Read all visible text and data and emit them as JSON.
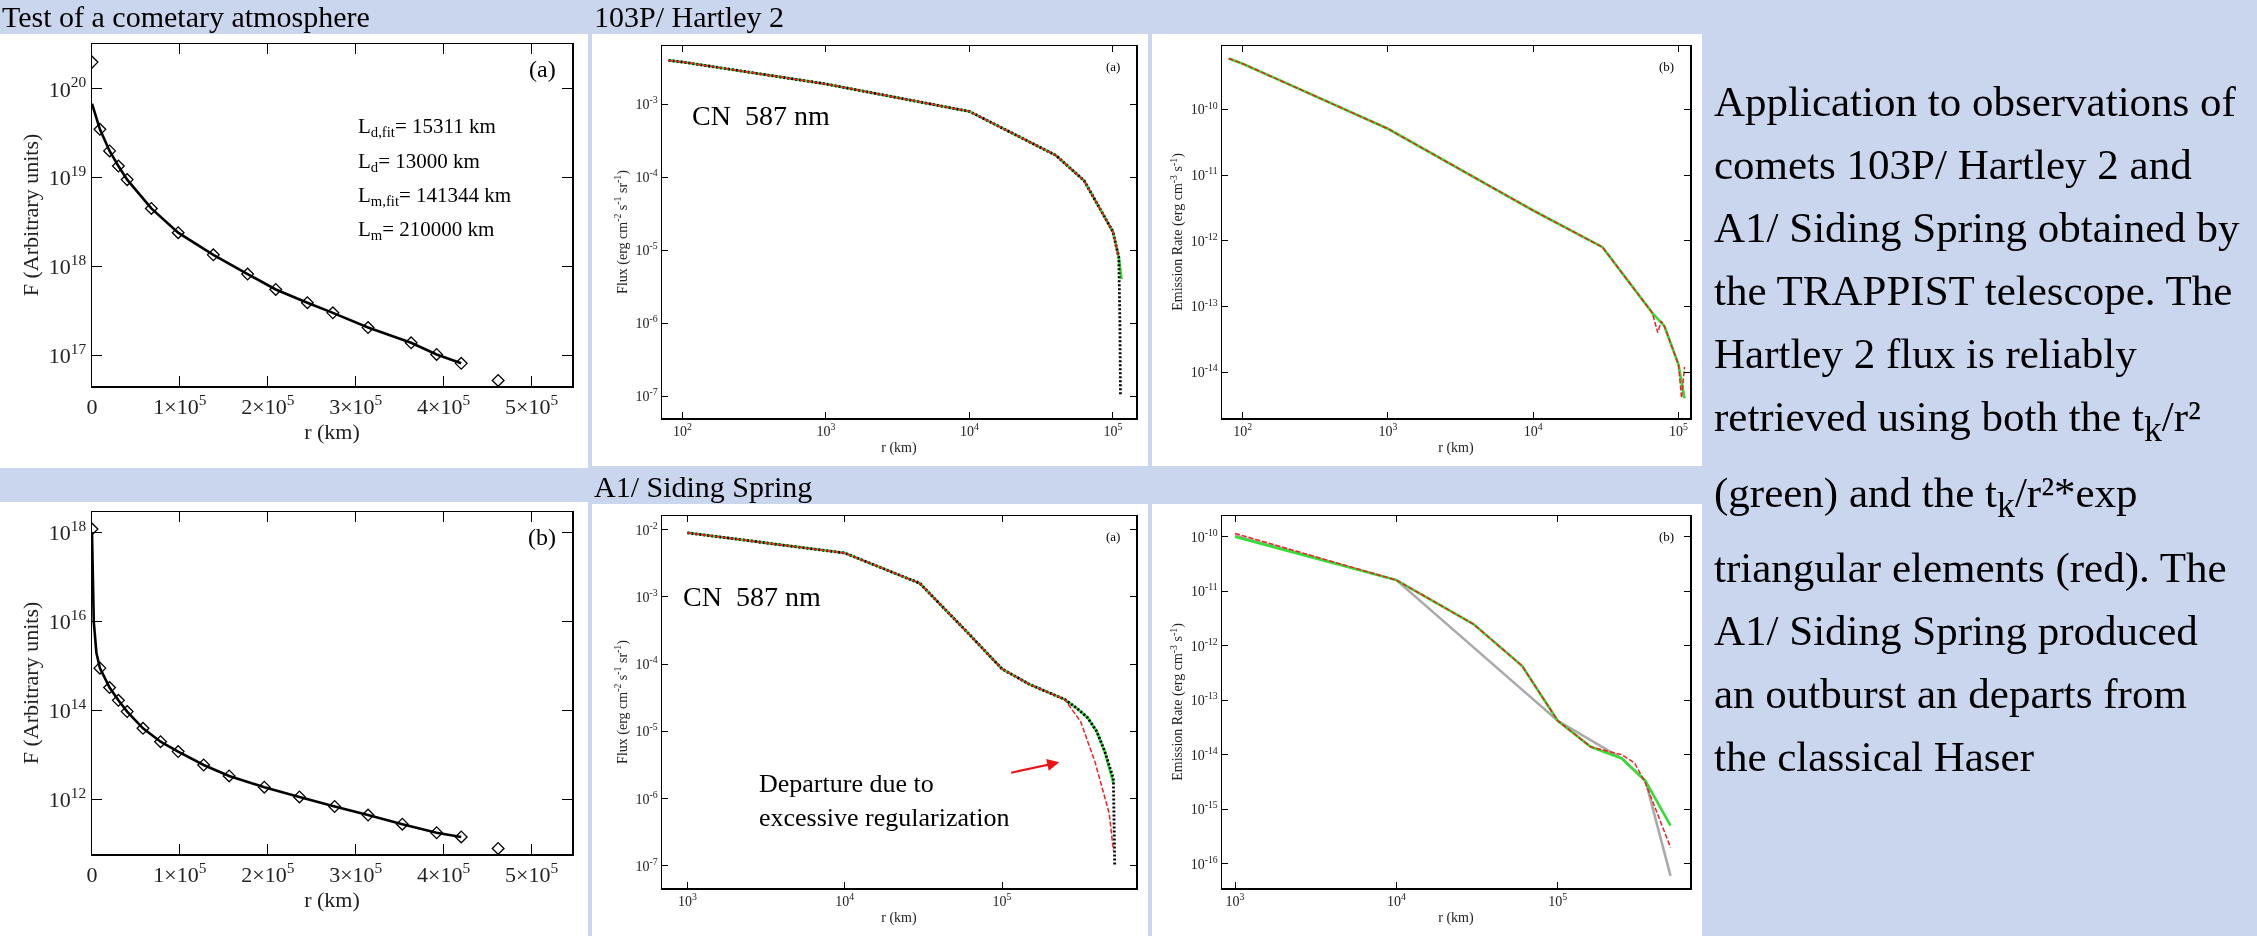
{
  "chart_data": [
    {
      "type": "line",
      "title": "Test of a cometary atmosphere",
      "xlabel": "r (km)",
      "ylabel": "F (Arbitrary units)",
      "log": "y",
      "xlim": [
        0,
        546000
      ],
      "ylim": [
        4.5e+16,
        3.2e+20
      ],
      "xticks": [
        {
          "value": 0,
          "label": "0"
        },
        {
          "value": 100000,
          "label": "1×10$^{5}$"
        },
        {
          "value": 200000,
          "label": "2×10$^{5}$"
        },
        {
          "value": 300000,
          "label": "3×10$^{5}$"
        },
        {
          "value": 400000,
          "label": "4×10$^{5}$"
        },
        {
          "value": 500000,
          "label": "5×10$^{5}$"
        }
      ],
      "yticks": [
        {
          "value": 1e+17,
          "label": "10$^{17}$"
        },
        {
          "value": 1e+18,
          "label": "10$^{18}$"
        },
        {
          "value": 1e+19,
          "label": "10$^{19}$"
        },
        {
          "value": 1e+20,
          "label": "10$^{20}$"
        }
      ],
      "annotations": [
        "(a)",
        "L$_{d,fit}$= 15311 km",
        "L$_{d}$= 13000 km",
        "L$_{m,fit}$= 141344 km",
        "L$_{m}$= 210000 km"
      ],
      "series": [
        {
          "type": "scatter",
          "marker": "diamond",
          "color": "#000000",
          "x": [
            0,
            9000,
            20000,
            30000,
            40000,
            67500,
            98000,
            138000,
            177000,
            209000,
            245000,
            274000,
            314000,
            363000,
            392000,
            420000,
            462000
          ],
          "values": [
            2e+20,
            3.5e+19,
            2e+19,
            1.35e+19,
            9.5e+18,
            4.5e+18,
            2.4e+18,
            1.35e+18,
            8.2e+17,
            5.5e+17,
            3.9e+17,
            3e+17,
            2.05e+17,
            1.38e+17,
            1.02e+17,
            8.1e+16,
            5.2e+16
          ]
        },
        {
          "type": "line",
          "line_style": "solid",
          "color": "#000000",
          "x": [
            0,
            9000,
            20000,
            30000,
            40000,
            67500,
            98000,
            138000,
            177000,
            209000,
            245000,
            274000,
            314000,
            363000,
            392000,
            420000
          ],
          "values": [
            6.8e+19,
            3.5e+19,
            2e+19,
            1.35e+19,
            9.5e+18,
            4.5e+18,
            2.4e+18,
            1.35e+18,
            8.2e+17,
            5.5e+17,
            3.9e+17,
            3e+17,
            2.05e+17,
            1.38e+17,
            1.02e+17,
            8.1e+16
          ]
        }
      ]
    },
    {
      "type": "line",
      "xlabel": "r (km)",
      "ylabel": "F (Arbitrary units)",
      "log": "y",
      "xlim": [
        0,
        546000
      ],
      "ylim": [
        60000000000.0,
        2.9e+18
      ],
      "xticks": [
        {
          "value": 0,
          "label": "0"
        },
        {
          "value": 100000,
          "label": "1×10$^{5}$"
        },
        {
          "value": 200000,
          "label": "2×10$^{5}$"
        },
        {
          "value": 300000,
          "label": "3×10$^{5}$"
        },
        {
          "value": 400000,
          "label": "4×10$^{5}$"
        },
        {
          "value": 500000,
          "label": "5×10$^{5}$"
        }
      ],
      "yticks": [
        {
          "value": 1000000000000.0,
          "label": "10$^{12}$"
        },
        {
          "value": 100000000000000.0,
          "label": "10$^{14}$"
        },
        {
          "value": 1e+16,
          "label": "10$^{16}$"
        },
        {
          "value": 1e+18,
          "label": "10$^{18}$"
        }
      ],
      "annotations": [
        "(b)"
      ],
      "series": [
        {
          "type": "scatter",
          "marker": "diamond",
          "color": "#000000",
          "x": [
            0,
            9000,
            20000,
            30000,
            40000,
            58000,
            78000,
            98000,
            127000,
            156000,
            196000,
            236000,
            276000,
            314000,
            353000,
            392000,
            420000,
            462000
          ],
          "values": [
            1.2e+18,
            900000000000000.0,
            330000000000000.0,
            170000000000000.0,
            95000000000000.0,
            40000000000000.0,
            20000000000000.0,
            12000000000000.0,
            6000000000000.0,
            3400000000000.0,
            1900000000000.0,
            1150000000000.0,
            700000000000.0,
            450000000000.0,
            280000000000.0,
            180000000000.0,
            145000000000.0,
            80000000000.0
          ]
        },
        {
          "type": "line",
          "line_style": "solid",
          "color": "#000000",
          "x": [
            0,
            1000,
            2000,
            5000,
            9000,
            20000,
            30000,
            40000,
            58000,
            78000,
            98000,
            127000,
            156000,
            196000,
            236000,
            276000,
            314000,
            353000,
            392000,
            420000
          ],
          "values": [
            1e+18,
            1e+17,
            1e+16,
            2000000000000000.0,
            900000000000000.0,
            330000000000000.0,
            170000000000000.0,
            95000000000000.0,
            40000000000000.0,
            20000000000000.0,
            12000000000000.0,
            6000000000000.0,
            3400000000000.0,
            1900000000000.0,
            1150000000000.0,
            700000000000.0,
            450000000000.0,
            280000000000.0,
            180000000000.0,
            145000000000.0
          ]
        }
      ]
    },
    {
      "type": "line",
      "title": "103P/ Hartley 2",
      "xlabel": "r (km)",
      "ylabel": "Flux (erg cm$^{-2}$ s$^{-1}$ sr$^{-1}$)",
      "log": "xy",
      "xlim": [
        72,
        145000
      ],
      "ylim": [
        5e-08,
        0.0063
      ],
      "xticks": [
        {
          "value": 100,
          "label": "10$^{2}$"
        },
        {
          "value": 1000,
          "label": "10$^{3}$"
        },
        {
          "value": 10000,
          "label": "10$^{4}$"
        },
        {
          "value": 100000,
          "label": "10$^{5}$"
        }
      ],
      "yticks": [
        {
          "value": 1e-07,
          "label": "10$^{-7}$"
        },
        {
          "value": 1e-06,
          "label": "10$^{-6}$"
        },
        {
          "value": 1e-05,
          "label": "10$^{-5}$"
        },
        {
          "value": 0.0001,
          "label": "10$^{-4}$"
        },
        {
          "value": 0.001,
          "label": "10$^{-3}$"
        }
      ],
      "annotations": [
        "(a)",
        "CN  587 nm"
      ],
      "series": [
        {
          "line_style": "solid",
          "color": "#33dd33",
          "x": [
            80,
            100,
            1000,
            10000,
            20000,
            40000,
            63000,
            100000,
            110000,
            115000
          ],
          "values": [
            0.004,
            0.0038,
            0.0019,
            0.0008,
            0.0004,
            0.0002,
            9e-05,
            1.8e-05,
            8e-06,
            4e-06
          ]
        },
        {
          "line_style": "dotted",
          "color": "#000000",
          "x": [
            80,
            100,
            1000,
            10000,
            20000,
            40000,
            63000,
            100000,
            110000,
            112000,
            113000
          ],
          "values": [
            0.004,
            0.0038,
            0.0019,
            0.0008,
            0.0004,
            0.0002,
            9e-05,
            1.8e-05,
            8e-06,
            1e-06,
            1e-07
          ]
        },
        {
          "line_style": "dashed",
          "color": "#ee2222",
          "x": [
            80,
            100,
            1000,
            10000,
            20000,
            40000,
            63000,
            100000,
            110000
          ],
          "values": [
            0.004,
            0.0038,
            0.0019,
            0.0008,
            0.0004,
            0.0002,
            9e-05,
            1.8e-05,
            8e-06
          ]
        }
      ]
    },
    {
      "type": "line",
      "xlabel": "r (km)",
      "ylabel": "Emission Rate (erg cm$^{-3}$ s$^{-1}$)",
      "log": "xy",
      "xlim": [
        72,
        120000
      ],
      "ylim": [
        2e-15,
        9.3e-10
      ],
      "xticks": [
        {
          "value": 100,
          "label": "10$^{2}$"
        },
        {
          "value": 1000,
          "label": "10$^{3}$"
        },
        {
          "value": 10000,
          "label": "10$^{4}$"
        },
        {
          "value": 100000,
          "label": "10$^{5}$"
        }
      ],
      "yticks": [
        {
          "value": 1e-14,
          "label": "10$^{-14}$"
        },
        {
          "value": 1e-13,
          "label": "10$^{-13}$"
        },
        {
          "value": 1e-12,
          "label": "10$^{-12}$"
        },
        {
          "value": 1e-11,
          "label": "10$^{-11}$"
        },
        {
          "value": 1e-10,
          "label": "10$^{-10}$"
        }
      ],
      "annotations": [
        "(b)"
      ],
      "series": [
        {
          "line_style": "solid",
          "color": "#33dd33",
          "x": [
            80,
            100,
            1000,
            10000,
            30000,
            66000,
            80000,
            100000,
            110000
          ],
          "values": [
            6e-10,
            5e-10,
            5.1e-11,
            2.9e-12,
            8e-13,
            8e-14,
            5e-14,
            1.3e-14,
            4e-15
          ]
        },
        {
          "line_style": "dashed",
          "color": "#ee2222",
          "x": [
            80,
            100,
            1000,
            10000,
            30000,
            66000,
            72000,
            76000,
            80000,
            100000,
            105000,
            110000
          ],
          "values": [
            6e-10,
            5e-10,
            5.1e-11,
            2.9e-12,
            8e-13,
            8e-14,
            4e-14,
            6e-14,
            5e-14,
            1.3e-14,
            4e-15,
            1.2e-14
          ]
        }
      ]
    },
    {
      "type": "line",
      "title": "A1/ Siding Spring",
      "xlabel": "r (km)",
      "ylabel": "Flux (erg cm$^{-2}$ s$^{-1}$ sr$^{-1}$)",
      "log": "xy",
      "xlim": [
        690,
        710000
      ],
      "ylim": [
        4.7e-08,
        0.016
      ],
      "xticks": [
        {
          "value": 1000,
          "label": "10$^{3}$"
        },
        {
          "value": 10000,
          "label": "10$^{4}$"
        },
        {
          "value": 100000,
          "label": "10$^{5}$"
        }
      ],
      "yticks": [
        {
          "value": 1e-07,
          "label": "10$^{-7}$"
        },
        {
          "value": 1e-06,
          "label": "10$^{-6}$"
        },
        {
          "value": 1e-05,
          "label": "10$^{-5}$"
        },
        {
          "value": 0.0001,
          "label": "10$^{-4}$"
        },
        {
          "value": 0.001,
          "label": "10$^{-3}$"
        },
        {
          "value": 0.01,
          "label": "10$^{-2}$"
        }
      ],
      "annotations": [
        "(a)",
        "CN  587 nm",
        "Departure due to\nexcessive regularization"
      ],
      "series": [
        {
          "line_style": "solid",
          "color": "#33dd33",
          "x": [
            1000,
            10000,
            30000,
            60000,
            100000,
            150000,
            250000,
            300000,
            350000,
            400000,
            450000,
            510000
          ],
          "values": [
            0.009,
            0.0045,
            0.0016,
            0.0003,
            8.5e-05,
            5e-05,
            3e-05,
            2.2e-05,
            1.6e-05,
            1e-05,
            5e-06,
            1.7e-06
          ]
        },
        {
          "line_style": "dotted",
          "color": "#000000",
          "x": [
            1000,
            10000,
            30000,
            60000,
            100000,
            150000,
            250000,
            300000,
            350000,
            400000,
            450000,
            510000,
            520000
          ],
          "values": [
            0.009,
            0.0045,
            0.0016,
            0.0003,
            8.5e-05,
            5e-05,
            3e-05,
            2.2e-05,
            1.6e-05,
            1e-05,
            5e-06,
            2e-06,
            1e-07
          ]
        },
        {
          "line_style": "dashed",
          "color": "#ee2222",
          "x": [
            1000,
            10000,
            30000,
            60000,
            100000,
            150000,
            250000,
            316000,
            390000,
            480000,
            510000
          ],
          "values": [
            0.009,
            0.0045,
            0.0016,
            0.0003,
            8.5e-05,
            5e-05,
            3e-05,
            1.4e-05,
            3.5e-06,
            6e-07,
            1.7e-07
          ]
        }
      ]
    },
    {
      "type": "line",
      "xlabel": "r (km)",
      "ylabel": "Emission Rate (erg cm$^{-3}$ s$^{-1}$)",
      "log": "xy",
      "xlim": [
        830,
        660000
      ],
      "ylim": [
        3.6e-17,
        2.4e-10
      ],
      "xticks": [
        {
          "value": 1000,
          "label": "10$^{3}$"
        },
        {
          "value": 10000,
          "label": "10$^{4}$"
        },
        {
          "value": 100000,
          "label": "10$^{5}$"
        }
      ],
      "yticks": [
        {
          "value": 1e-16,
          "label": "10$^{-16}$"
        },
        {
          "value": 1e-15,
          "label": "10$^{-15}$"
        },
        {
          "value": 1e-14,
          "label": "10$^{-14}$"
        },
        {
          "value": 1e-13,
          "label": "10$^{-13}$"
        },
        {
          "value": 1e-12,
          "label": "10$^{-12}$"
        },
        {
          "value": 1e-11,
          "label": "10$^{-11}$"
        },
        {
          "value": 1e-10,
          "label": "10$^{-10}$"
        }
      ],
      "annotations": [
        "(b)"
      ],
      "series": [
        {
          "line_style": "solid",
          "color": "#aaaaaa",
          "x": [
            1000,
            10000,
            100000,
            250000,
            350000,
            500000
          ],
          "values": [
            1.05e-10,
            1.6e-11,
            4.2e-14,
            8.5e-15,
            3.3e-15,
            6e-17
          ]
        },
        {
          "line_style": "solid",
          "color": "#33dd33",
          "x": [
            1000,
            10000,
            30000,
            60000,
            100000,
            160000,
            250000,
            350000,
            500000
          ],
          "values": [
            1e-10,
            1.6e-11,
            2.5e-12,
            4.3e-13,
            4.2e-14,
            1.4e-14,
            8.5e-15,
            3.3e-15,
            5e-16
          ]
        },
        {
          "line_style": "dashed",
          "color": "#ee2222",
          "x": [
            1000,
            10000,
            30000,
            60000,
            100000,
            160000,
            250000,
            300000,
            350000,
            500000
          ],
          "values": [
            1.15e-10,
            1.6e-11,
            2.5e-12,
            4.3e-13,
            4.2e-14,
            1.4e-14,
            1e-14,
            7e-15,
            3e-15,
            2e-16
          ]
        }
      ]
    },
    {
      "type": "other",
      "annotations": [
        "Application to observations of comets 103P/ Hartley 2 and A1/ Siding Spring obtained by the TRAPPIST telescope. The Hartley 2 flux is reliably retrieved using both the t$_{k}$/r² (green) and the t$_{k}$/r²*exp triangular elements (red). The A1/ Siding Spring produced an outburst an departs from the classical Haser"
      ]
    }
  ]
}
